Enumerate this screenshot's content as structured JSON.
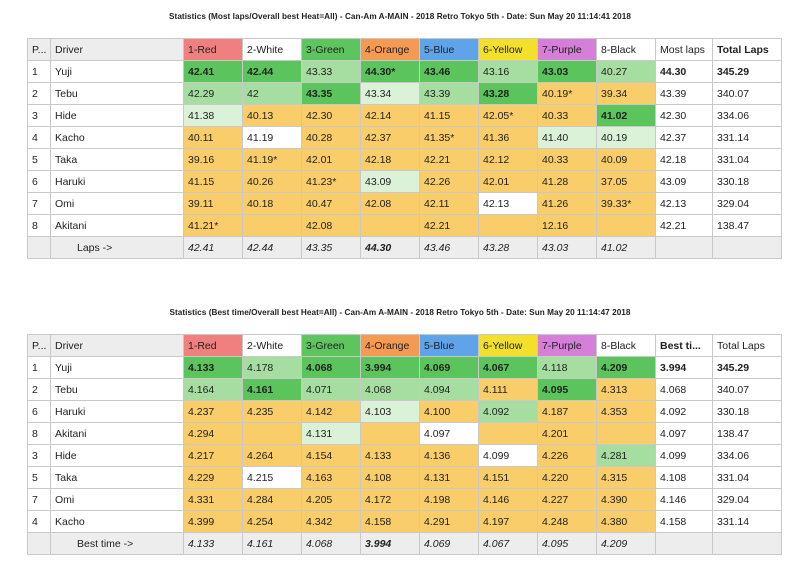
{
  "colors": {
    "red": "#f08080",
    "green": "#5ec45e",
    "orange": "#f49a52",
    "blue": "#5fa3e8",
    "yellow": "#f3e02a",
    "purple": "#d57fd9",
    "fill": "#f8cd6a",
    "best": "#5cc45c",
    "good": "#a6dda0",
    "ok": "#dcf2d8"
  },
  "sheet1": {
    "title": "Statistics (Most laps/Overall best Heat=All) - Can-Am A-MAIN - 2018 Retro Tokyo 5th - Date: Sun May 20 11:14:41 2018",
    "headers": [
      "P...",
      "Driver",
      "1-Red",
      "2-White",
      "3-Green",
      "4-Orange",
      "5-Blue",
      "6-Yellow",
      "7-Purple",
      "8-Black",
      "Most laps",
      "Total Laps"
    ],
    "rows": [
      {
        "pos": "1",
        "driver": "Yuji",
        "cells": [
          "42.41",
          "42.44",
          "43.33",
          "44.30*",
          "43.46",
          "43.16",
          "43.03",
          "40.27"
        ],
        "best": "44.30",
        "total": "345.29"
      },
      {
        "pos": "2",
        "driver": "Tebu",
        "cells": [
          "42.29",
          "42",
          "43.35",
          "43.34",
          "43.39",
          "43.28",
          "40.19*",
          "39.34"
        ],
        "best": "43.39",
        "total": "340.07"
      },
      {
        "pos": "3",
        "driver": "Hide",
        "cells": [
          "41.38",
          "40.13",
          "42.30",
          "42.14",
          "41.15",
          "42.05*",
          "40.33",
          "41.02"
        ],
        "best": "42.30",
        "total": "334.06"
      },
      {
        "pos": "4",
        "driver": "Kacho",
        "cells": [
          "40.11",
          "41.19",
          "40.28",
          "42.37",
          "41.35*",
          "41.36",
          "41.40",
          "40.19"
        ],
        "best": "42.37",
        "total": "331.14"
      },
      {
        "pos": "5",
        "driver": "Taka",
        "cells": [
          "39.16",
          "41.19*",
          "42.01",
          "42.18",
          "42.21",
          "42.12",
          "40.33",
          "40.09"
        ],
        "best": "42.18",
        "total": "331.04"
      },
      {
        "pos": "6",
        "driver": "Haruki",
        "cells": [
          "41.15",
          "40.26",
          "41.23*",
          "43.09",
          "42.26",
          "42.01",
          "41.28",
          "37.05"
        ],
        "best": "43.09",
        "total": "330.18"
      },
      {
        "pos": "7",
        "driver": "Omi",
        "cells": [
          "39.11",
          "40.18",
          "40.47",
          "42.08",
          "42.11",
          "42.13",
          "41.26",
          "39.33*"
        ],
        "best": "42.13",
        "total": "329.04"
      },
      {
        "pos": "8",
        "driver": "Akitani",
        "cells": [
          "41.21*",
          "",
          "42.08",
          "",
          "42.21",
          "",
          "12.16",
          ""
        ],
        "best": "42.21",
        "total": "138.47"
      }
    ],
    "summary": {
      "label": "Laps ->",
      "cells": [
        "42.41",
        "42.44",
        "43.35",
        "44.30",
        "43.46",
        "43.28",
        "43.03",
        "41.02"
      ]
    }
  },
  "sheet2": {
    "title": "Statistics (Best time/Overall best Heat=All) - Can-Am A-MAIN - 2018 Retro Tokyo 5th - Date: Sun May 20 11:14:47 2018",
    "headers": [
      "P...",
      "Driver",
      "1-Red",
      "2-White",
      "3-Green",
      "4-Orange",
      "5-Blue",
      "6-Yellow",
      "7-Purple",
      "8-Black",
      "Best ti...",
      "Total Laps"
    ],
    "rows": [
      {
        "pos": "1",
        "driver": "Yuji",
        "cells": [
          "4.133",
          "4.178",
          "4.068",
          "3.994",
          "4.069",
          "4.067",
          "4.118",
          "4.209"
        ],
        "best": "3.994",
        "total": "345.29"
      },
      {
        "pos": "2",
        "driver": "Tebu",
        "cells": [
          "4.164",
          "4.161",
          "4.071",
          "4.068",
          "4.094",
          "4.111",
          "4.095",
          "4.313"
        ],
        "best": "4.068",
        "total": "340.07"
      },
      {
        "pos": "6",
        "driver": "Haruki",
        "cells": [
          "4.237",
          "4.235",
          "4.142",
          "4.103",
          "4.100",
          "4.092",
          "4.187",
          "4.353"
        ],
        "best": "4.092",
        "total": "330.18"
      },
      {
        "pos": "8",
        "driver": "Akitani",
        "cells": [
          "4.294",
          "",
          "4.131",
          "",
          "4.097",
          "",
          "4.201",
          ""
        ],
        "best": "4.097",
        "total": "138.47"
      },
      {
        "pos": "3",
        "driver": "Hide",
        "cells": [
          "4.217",
          "4.264",
          "4.154",
          "4.133",
          "4.136",
          "4.099",
          "4.226",
          "4.281"
        ],
        "best": "4.099",
        "total": "334.06"
      },
      {
        "pos": "5",
        "driver": "Taka",
        "cells": [
          "4.229",
          "4.215",
          "4.163",
          "4.108",
          "4.131",
          "4.151",
          "4.220",
          "4.315"
        ],
        "best": "4.108",
        "total": "331.04"
      },
      {
        "pos": "7",
        "driver": "Omi",
        "cells": [
          "4.331",
          "4.284",
          "4.205",
          "4.172",
          "4.198",
          "4.146",
          "4.227",
          "4.390"
        ],
        "best": "4.146",
        "total": "329.04"
      },
      {
        "pos": "4",
        "driver": "Kacho",
        "cells": [
          "4.399",
          "4.254",
          "4.342",
          "4.158",
          "4.291",
          "4.197",
          "4.248",
          "4.380"
        ],
        "best": "4.158",
        "total": "331.14"
      }
    ],
    "summary": {
      "label": "Best time ->",
      "cells": [
        "4.133",
        "4.161",
        "4.068",
        "3.994",
        "4.069",
        "4.067",
        "4.095",
        "4.209"
      ]
    }
  }
}
